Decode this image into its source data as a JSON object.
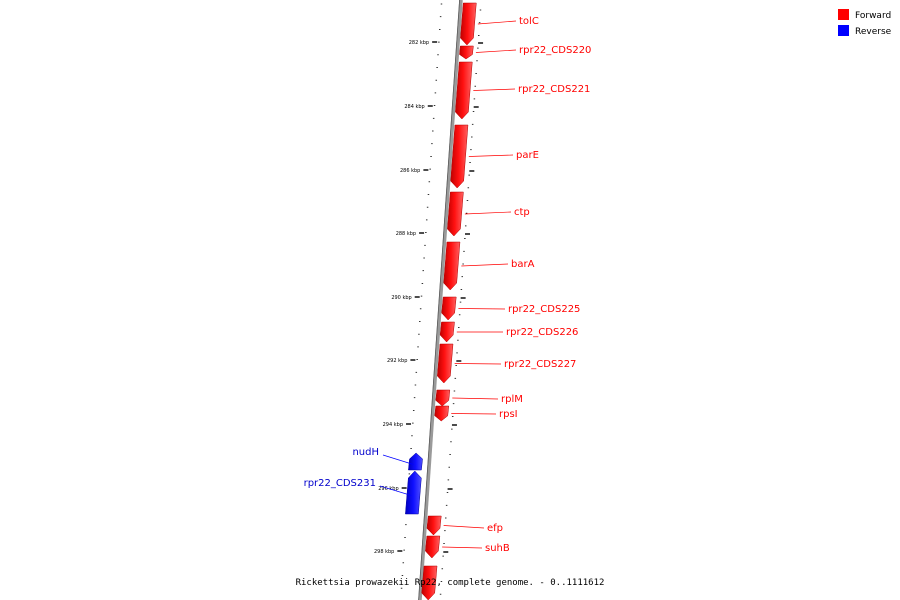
{
  "caption": "Rickettsia prowazekii Rp22, complete genome. - 0..1111612",
  "legend": [
    {
      "label": "Forward",
      "color": "#ff0000"
    },
    {
      "label": "Reverse",
      "color": "#0000ff"
    }
  ],
  "ticks": [
    "282 kbp",
    "284 kbp",
    "286 kbp",
    "288 kbp",
    "290 kbp",
    "292 kbp",
    "294 kbp",
    "296 kbp",
    "298 kbp"
  ],
  "genes": [
    {
      "name": "tolC",
      "strand": "forward"
    },
    {
      "name": "rpr22_CDS220",
      "strand": "forward"
    },
    {
      "name": "rpr22_CDS221",
      "strand": "forward"
    },
    {
      "name": "parE",
      "strand": "forward"
    },
    {
      "name": "ctp",
      "strand": "forward"
    },
    {
      "name": "barA",
      "strand": "forward"
    },
    {
      "name": "rpr22_CDS225",
      "strand": "forward"
    },
    {
      "name": "rpr22_CDS226",
      "strand": "forward"
    },
    {
      "name": "rpr22_CDS227",
      "strand": "forward"
    },
    {
      "name": "rplM",
      "strand": "forward"
    },
    {
      "name": "rpsI",
      "strand": "forward"
    },
    {
      "name": "nudH",
      "strand": "reverse"
    },
    {
      "name": "rpr22_CDS231",
      "strand": "reverse"
    },
    {
      "name": "efp",
      "strand": "forward"
    },
    {
      "name": "suhB",
      "strand": "forward"
    }
  ],
  "colors": {
    "forward": "#ff0000",
    "reverse": "#0000ff",
    "backbone": "#808080"
  }
}
